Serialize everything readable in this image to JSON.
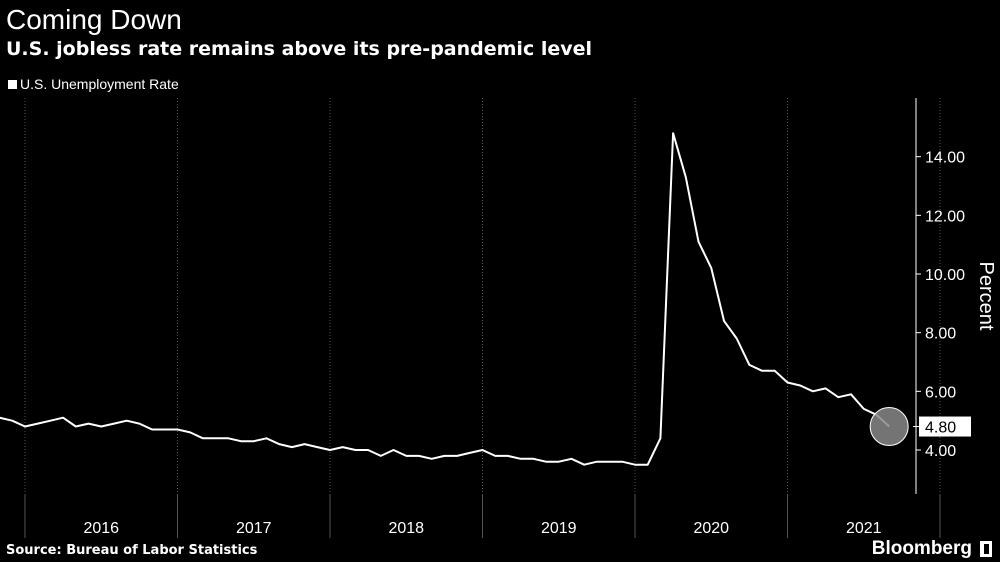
{
  "header": {
    "title": "Coming Down",
    "subtitle": "U.S. jobless rate remains above its pre-pandemic level"
  },
  "footer": {
    "source": "Source: Bureau of Labor Statistics",
    "brand": "Bloomberg"
  },
  "colors": {
    "background": "#000000",
    "line": "#ffffff",
    "grid": "#555555",
    "marker": "#888888"
  },
  "chart_data": {
    "type": "line",
    "ylabel": "Percent",
    "ylim": [
      2.5,
      16
    ],
    "yticks": [
      "4.00",
      "6.00",
      "8.00",
      "10.00",
      "12.00",
      "14.00"
    ],
    "xlabels": [
      "2016",
      "2017",
      "2018",
      "2019",
      "2020",
      "2021"
    ],
    "legend": {
      "position": "top-left",
      "entries": [
        "U.S. Unemployment Rate"
      ]
    },
    "last_value_label": "4.80",
    "series": [
      {
        "name": "U.S. Unemployment Rate",
        "x": [
          "2015-09",
          "2015-10",
          "2015-11",
          "2015-12",
          "2016-01",
          "2016-02",
          "2016-03",
          "2016-04",
          "2016-05",
          "2016-06",
          "2016-07",
          "2016-08",
          "2016-09",
          "2016-10",
          "2016-11",
          "2016-12",
          "2017-01",
          "2017-02",
          "2017-03",
          "2017-04",
          "2017-05",
          "2017-06",
          "2017-07",
          "2017-08",
          "2017-09",
          "2017-10",
          "2017-11",
          "2017-12",
          "2018-01",
          "2018-02",
          "2018-03",
          "2018-04",
          "2018-05",
          "2018-06",
          "2018-07",
          "2018-08",
          "2018-09",
          "2018-10",
          "2018-11",
          "2018-12",
          "2019-01",
          "2019-02",
          "2019-03",
          "2019-04",
          "2019-05",
          "2019-06",
          "2019-07",
          "2019-08",
          "2019-09",
          "2019-10",
          "2019-11",
          "2019-12",
          "2020-01",
          "2020-02",
          "2020-03",
          "2020-04",
          "2020-05",
          "2020-06",
          "2020-07",
          "2020-08",
          "2020-09",
          "2020-10",
          "2020-11",
          "2020-12",
          "2021-01",
          "2021-02",
          "2021-03",
          "2021-04",
          "2021-05",
          "2021-06",
          "2021-07",
          "2021-08",
          "2021-09"
        ],
        "values": [
          5.0,
          5.0,
          5.1,
          5.0,
          4.8,
          4.9,
          5.0,
          5.1,
          4.8,
          4.9,
          4.8,
          4.9,
          5.0,
          4.9,
          4.7,
          4.7,
          4.7,
          4.6,
          4.4,
          4.4,
          4.4,
          4.3,
          4.3,
          4.4,
          4.2,
          4.1,
          4.2,
          4.1,
          4.0,
          4.1,
          4.0,
          4.0,
          3.8,
          4.0,
          3.8,
          3.8,
          3.7,
          3.8,
          3.8,
          3.9,
          4.0,
          3.8,
          3.8,
          3.7,
          3.7,
          3.6,
          3.6,
          3.7,
          3.5,
          3.6,
          3.6,
          3.6,
          3.5,
          3.5,
          4.4,
          14.8,
          13.3,
          11.1,
          10.2,
          8.4,
          7.8,
          6.9,
          6.7,
          6.7,
          6.3,
          6.2,
          6.0,
          6.1,
          5.8,
          5.9,
          5.4,
          5.2,
          4.8
        ]
      }
    ]
  }
}
